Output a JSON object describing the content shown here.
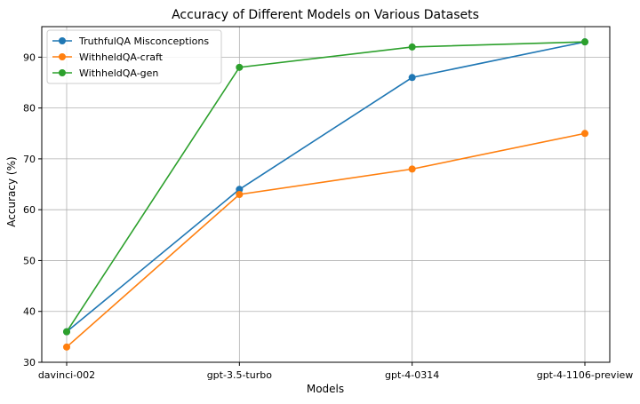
{
  "chart_data": {
    "type": "line",
    "title": "Accuracy of Different Models on Various Datasets",
    "xlabel": "Models",
    "ylabel": "Accuracy (%)",
    "categories": [
      "davinci-002",
      "gpt-3.5-turbo",
      "gpt-4-0314",
      "gpt-4-1106-preview"
    ],
    "ylim": [
      30,
      96
    ],
    "yticks": [
      30,
      40,
      50,
      60,
      70,
      80,
      90
    ],
    "grid": true,
    "legend_position": "top-left",
    "series": [
      {
        "name": "TruthfulQA Misconceptions",
        "color": "#1f77b4",
        "values": [
          36,
          64,
          86,
          93
        ]
      },
      {
        "name": "WithheldQA-craft",
        "color": "#ff7f0e",
        "values": [
          33,
          63,
          68,
          75
        ]
      },
      {
        "name": "WithheldQA-gen",
        "color": "#2ca02c",
        "values": [
          36,
          88,
          92,
          93
        ]
      }
    ]
  }
}
